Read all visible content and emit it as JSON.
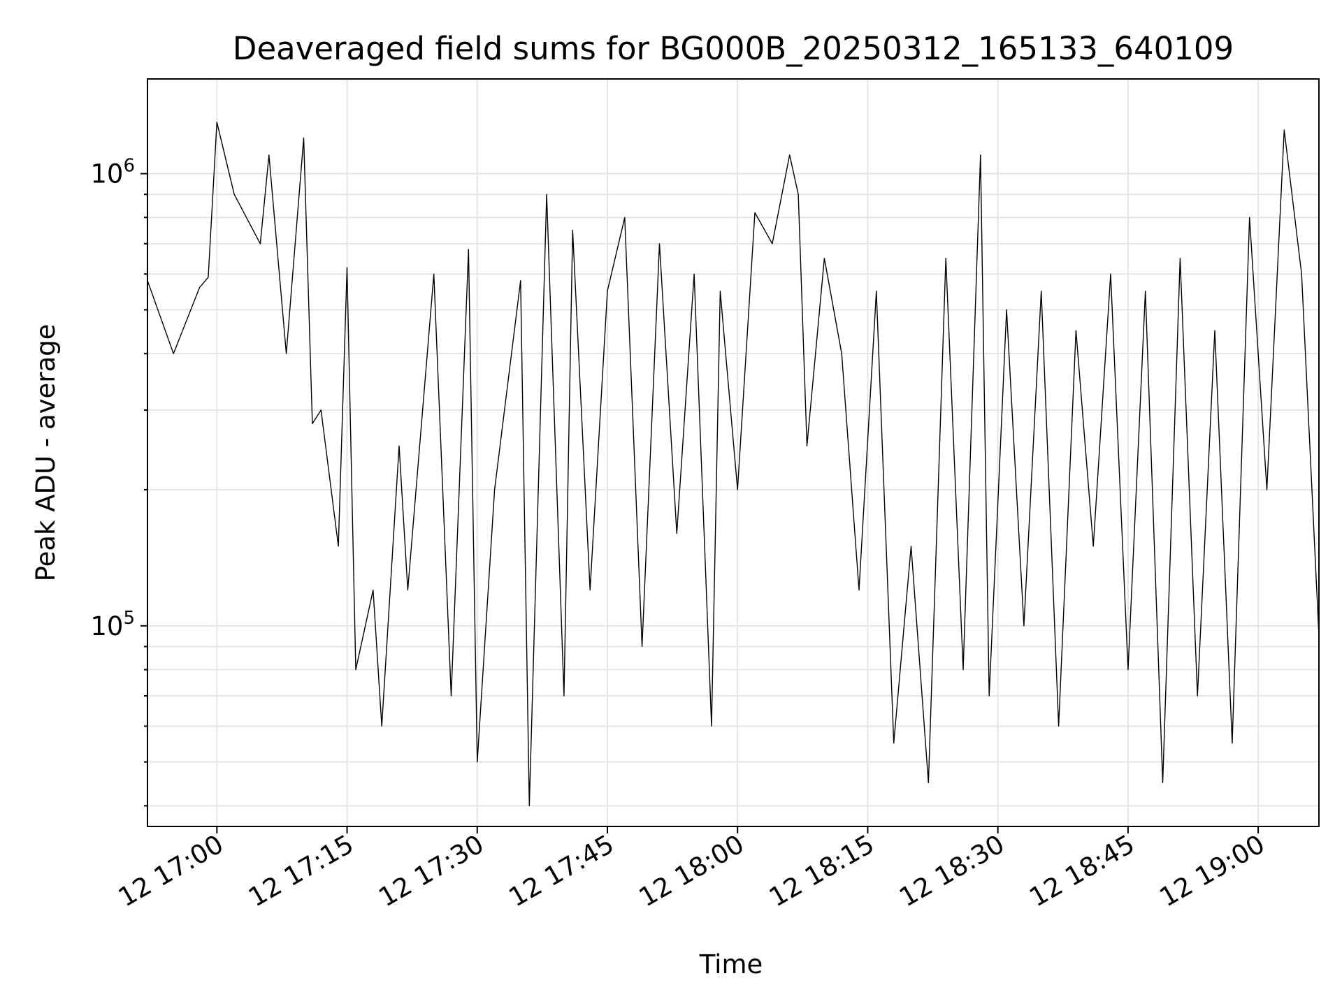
{
  "chart_data": {
    "type": "line",
    "title": "Deaveraged field sums for BG000B_20250312_165133_640109",
    "xlabel": "Time",
    "ylabel": "Peak ADU - average",
    "yscale": "log",
    "xlim": [
      "2025-03-12 16:52",
      "2025-03-12 19:07"
    ],
    "ylim": [
      36000,
      1620000
    ],
    "grid": true,
    "series": [
      {
        "color": "#000000",
        "x": [
          "2025-03-12 16:52",
          "2025-03-12 16:55",
          "2025-03-12 16:58",
          "2025-03-12 16:59",
          "2025-03-12 17:00",
          "2025-03-12 17:02",
          "2025-03-12 17:05",
          "2025-03-12 17:06",
          "2025-03-12 17:08",
          "2025-03-12 17:10",
          "2025-03-12 17:11",
          "2025-03-12 17:12",
          "2025-03-12 17:14",
          "2025-03-12 17:15",
          "2025-03-12 17:16",
          "2025-03-12 17:18",
          "2025-03-12 17:19",
          "2025-03-12 17:21",
          "2025-03-12 17:22",
          "2025-03-12 17:25",
          "2025-03-12 17:27",
          "2025-03-12 17:29",
          "2025-03-12 17:30",
          "2025-03-12 17:32",
          "2025-03-12 17:35",
          "2025-03-12 17:36",
          "2025-03-12 17:38",
          "2025-03-12 17:40",
          "2025-03-12 17:41",
          "2025-03-12 17:43",
          "2025-03-12 17:45",
          "2025-03-12 17:47",
          "2025-03-12 17:49",
          "2025-03-12 17:51",
          "2025-03-12 17:53",
          "2025-03-12 17:55",
          "2025-03-12 17:57",
          "2025-03-12 17:58",
          "2025-03-12 18:00",
          "2025-03-12 18:02",
          "2025-03-12 18:04",
          "2025-03-12 18:06",
          "2025-03-12 18:07",
          "2025-03-12 18:08",
          "2025-03-12 18:10",
          "2025-03-12 18:12",
          "2025-03-12 18:14",
          "2025-03-12 18:16",
          "2025-03-12 18:18",
          "2025-03-12 18:20",
          "2025-03-12 18:22",
          "2025-03-12 18:24",
          "2025-03-12 18:26",
          "2025-03-12 18:28",
          "2025-03-12 18:29",
          "2025-03-12 18:31",
          "2025-03-12 18:33",
          "2025-03-12 18:35",
          "2025-03-12 18:37",
          "2025-03-12 18:39",
          "2025-03-12 18:41",
          "2025-03-12 18:43",
          "2025-03-12 18:45",
          "2025-03-12 18:47",
          "2025-03-12 18:49",
          "2025-03-12 18:51",
          "2025-03-12 18:53",
          "2025-03-12 18:55",
          "2025-03-12 18:57",
          "2025-03-12 18:59",
          "2025-03-12 19:01",
          "2025-03-12 19:03",
          "2025-03-12 19:05",
          "2025-03-12 19:07"
        ],
        "y": [
          580000,
          400000,
          560000,
          590000,
          1300000,
          900000,
          700000,
          1100000,
          400000,
          1200000,
          280000,
          300000,
          150000,
          620000,
          80000,
          120000,
          60000,
          250000,
          120000,
          600000,
          70000,
          680000,
          50000,
          200000,
          580000,
          40000,
          900000,
          70000,
          750000,
          120000,
          550000,
          800000,
          90000,
          700000,
          160000,
          600000,
          60000,
          550000,
          200000,
          820000,
          700000,
          1100000,
          900000,
          250000,
          650000,
          400000,
          120000,
          550000,
          55000,
          150000,
          45000,
          650000,
          80000,
          1100000,
          70000,
          500000,
          100000,
          550000,
          60000,
          450000,
          150000,
          600000,
          80000,
          550000,
          45000,
          650000,
          70000,
          450000,
          55000,
          800000,
          200000,
          1250000,
          600000,
          95000
        ]
      }
    ],
    "x_ticks": [
      "12 17:00",
      "12 17:15",
      "12 17:30",
      "12 17:45",
      "12 18:00",
      "12 18:15",
      "12 18:30",
      "12 18:45",
      "12 19:00"
    ],
    "y_ticks": [
      {
        "base": "10",
        "exp": "6"
      },
      {
        "base": "10",
        "exp": "5"
      }
    ]
  }
}
